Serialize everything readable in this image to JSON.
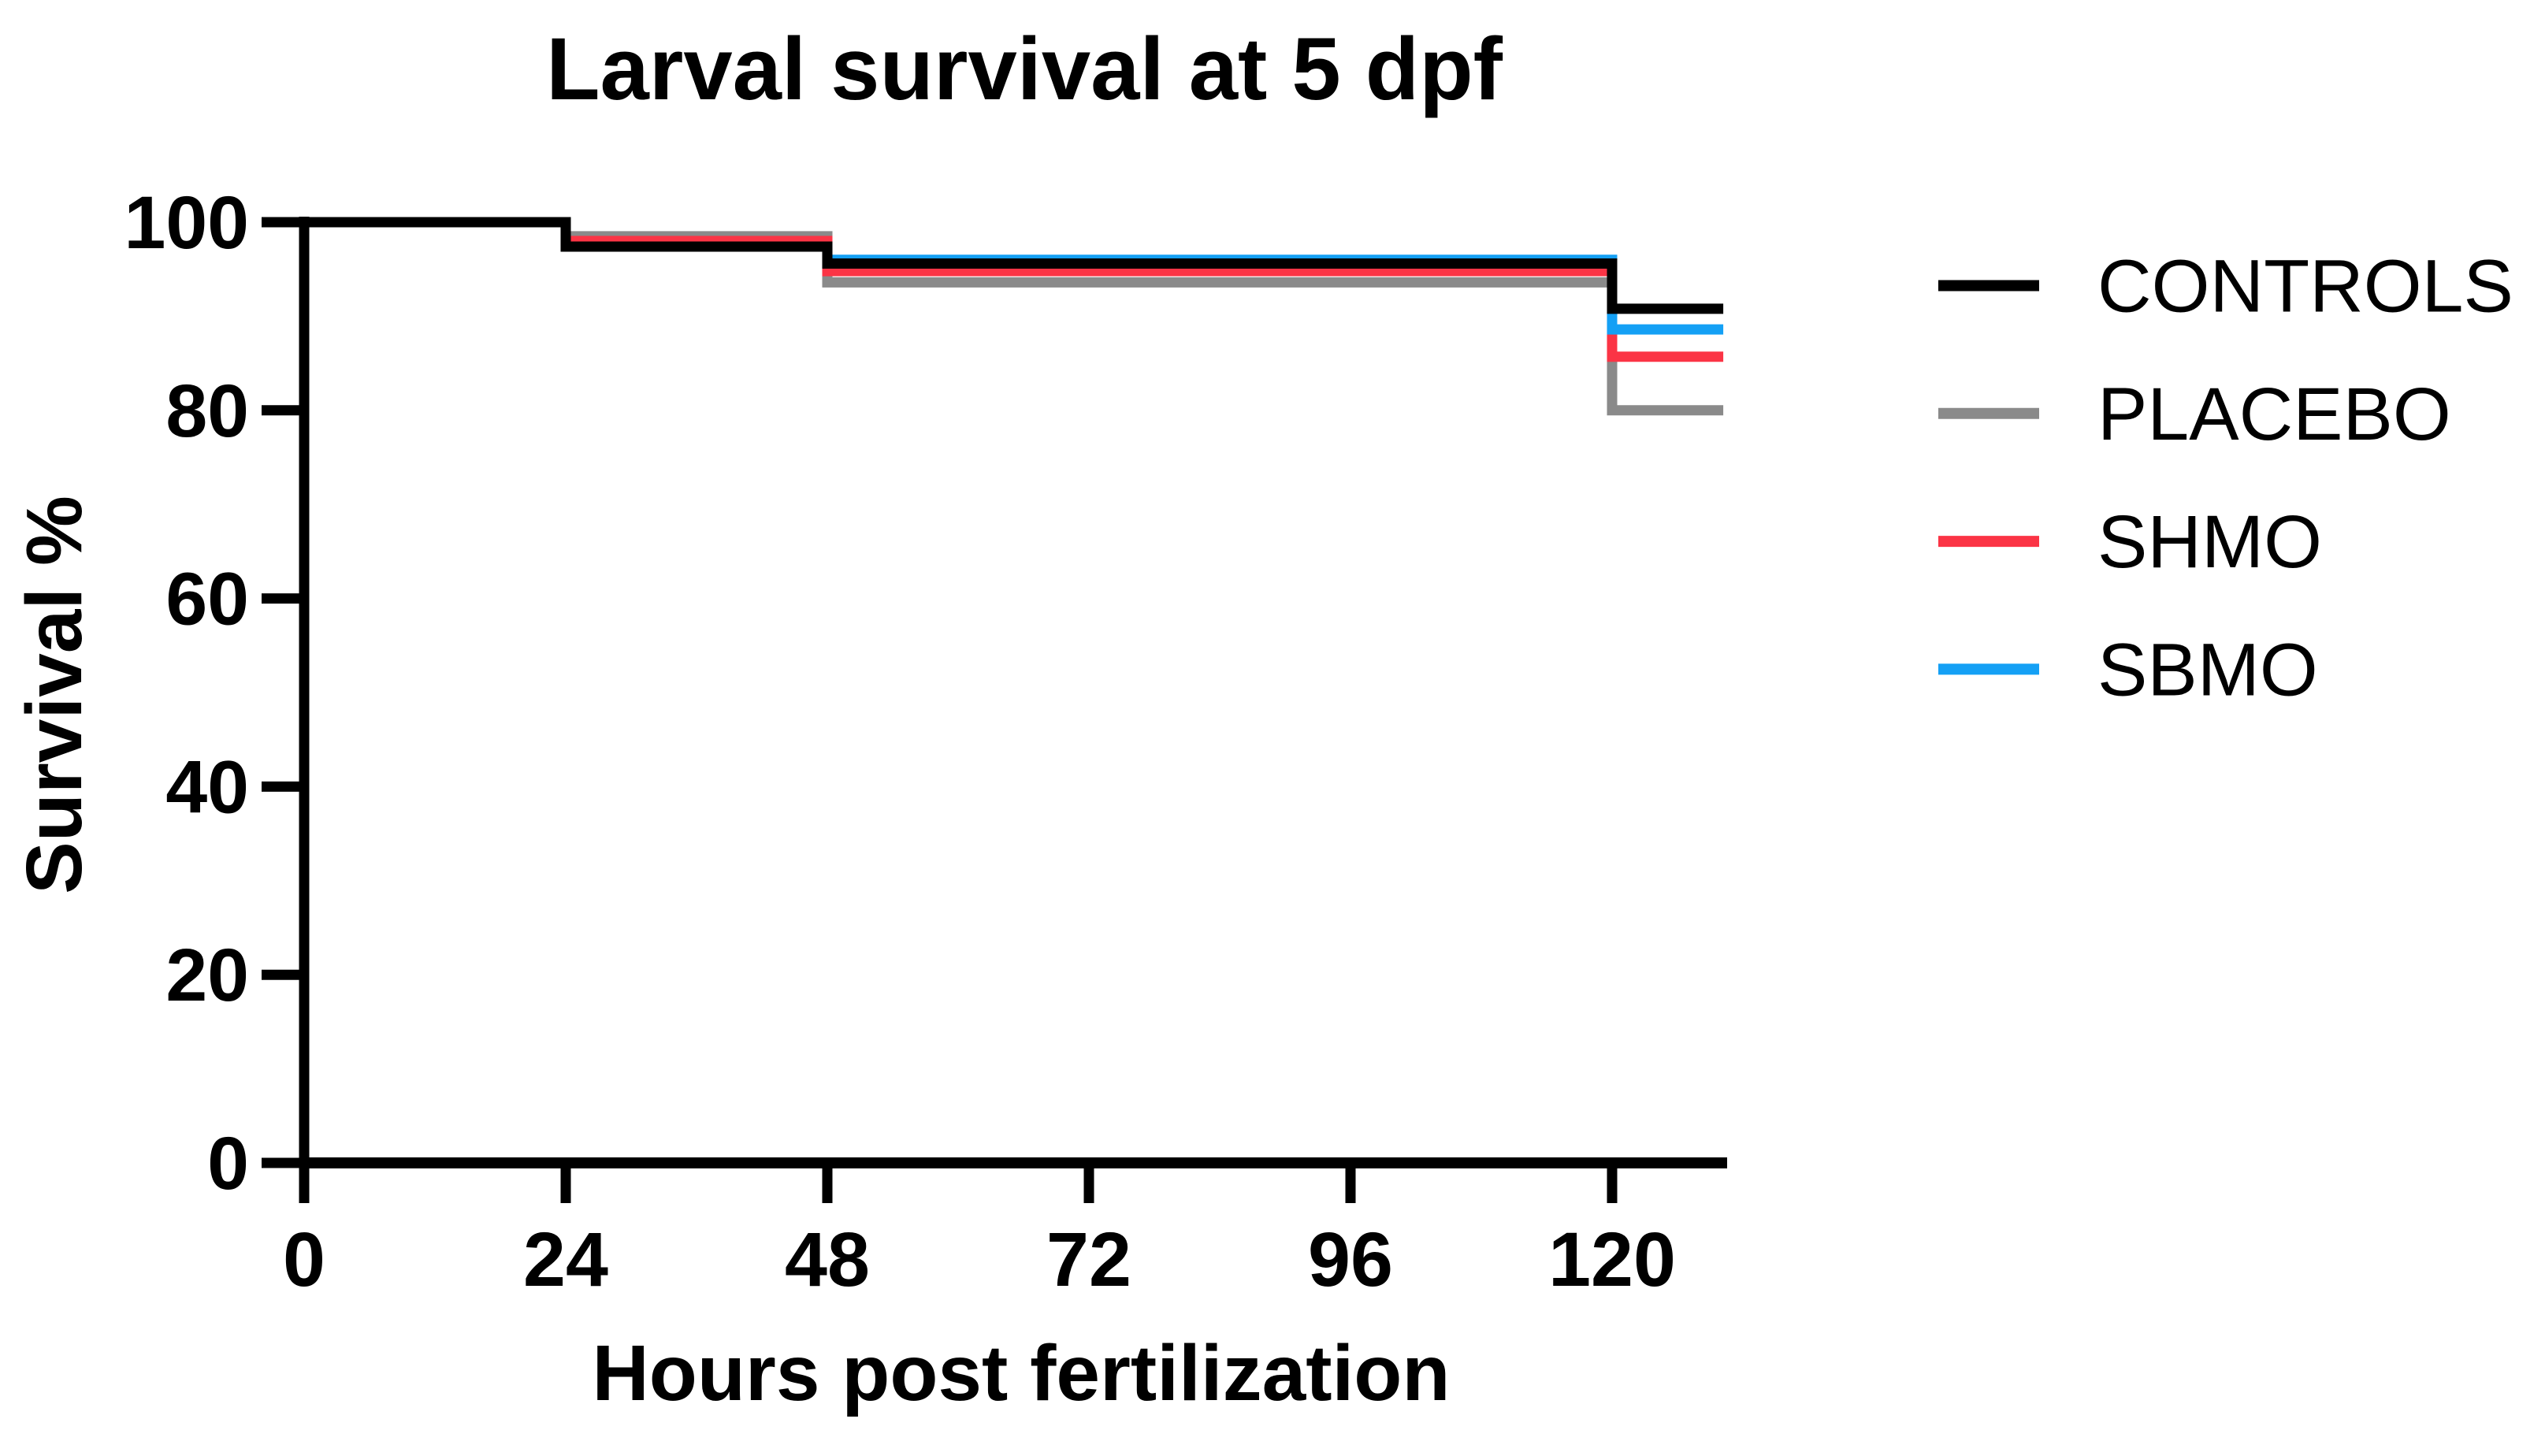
{
  "title": "Larval survival at 5 dpf",
  "chart_data": {
    "type": "line",
    "subtype": "kaplan-meier-step-survival",
    "title": "Larval survival at 5 dpf",
    "xlabel": "Hours post fertilization",
    "ylabel": "Survival %",
    "xlim": [
      0,
      130.6
    ],
    "ylim": [
      0,
      100
    ],
    "x_ticks": [
      0,
      24,
      48,
      72,
      96,
      120
    ],
    "y_ticks": [
      0,
      20,
      40,
      60,
      80,
      100
    ],
    "grid": false,
    "curve_end_hours": 130.2,
    "series": [
      {
        "name": "CONTROLS",
        "color": "#000000",
        "x": [
          0,
          24,
          48,
          120,
          130.2
        ],
        "y": [
          100,
          97.4,
          95.6,
          90.8,
          90.8
        ]
      },
      {
        "name": "PLACEBO",
        "color": "#8A8A8A",
        "x": [
          0,
          24,
          48,
          120,
          130.2
        ],
        "y": [
          100,
          98.5,
          93.6,
          80.0,
          80.0
        ]
      },
      {
        "name": "SHMO",
        "color": "#FB3445",
        "x": [
          0,
          24,
          48,
          120,
          130.2
        ],
        "y": [
          100,
          98.0,
          94.8,
          85.7,
          85.7
        ]
      },
      {
        "name": "SBMO",
        "color": "#14A0F5",
        "x": [
          0,
          24,
          48,
          120,
          130.2
        ],
        "y": [
          100,
          97.4,
          96.0,
          88.6,
          88.6
        ]
      }
    ],
    "draw_order": [
      "PLACEBO",
      "SHMO",
      "SBMO",
      "CONTROLS"
    ],
    "legend": {
      "position": "right",
      "entries": [
        "CONTROLS",
        "PLACEBO",
        "SHMO",
        "SBMO"
      ]
    }
  }
}
